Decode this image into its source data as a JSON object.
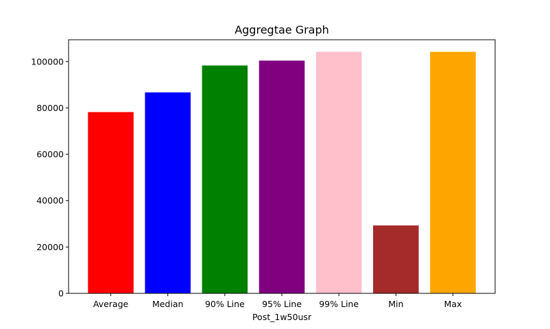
{
  "chart_data": {
    "type": "bar",
    "title": "Aggregtae Graph",
    "xlabel": "Post_1w50usr",
    "ylabel": "",
    "categories": [
      "Average",
      "Median",
      "90% Line",
      "95% Line",
      "99% Line",
      "Min",
      "Max"
    ],
    "values": [
      78200,
      86700,
      98300,
      100400,
      104200,
      29300,
      104200
    ],
    "colors": [
      "#ff0000",
      "#0000ff",
      "#008000",
      "#800080",
      "#ffc0cb",
      "#a52a2a",
      "#ffa500"
    ],
    "ylim": [
      0,
      109400
    ],
    "yticks": [
      0,
      20000,
      40000,
      60000,
      80000,
      100000
    ],
    "grid": false,
    "legend": "none"
  }
}
